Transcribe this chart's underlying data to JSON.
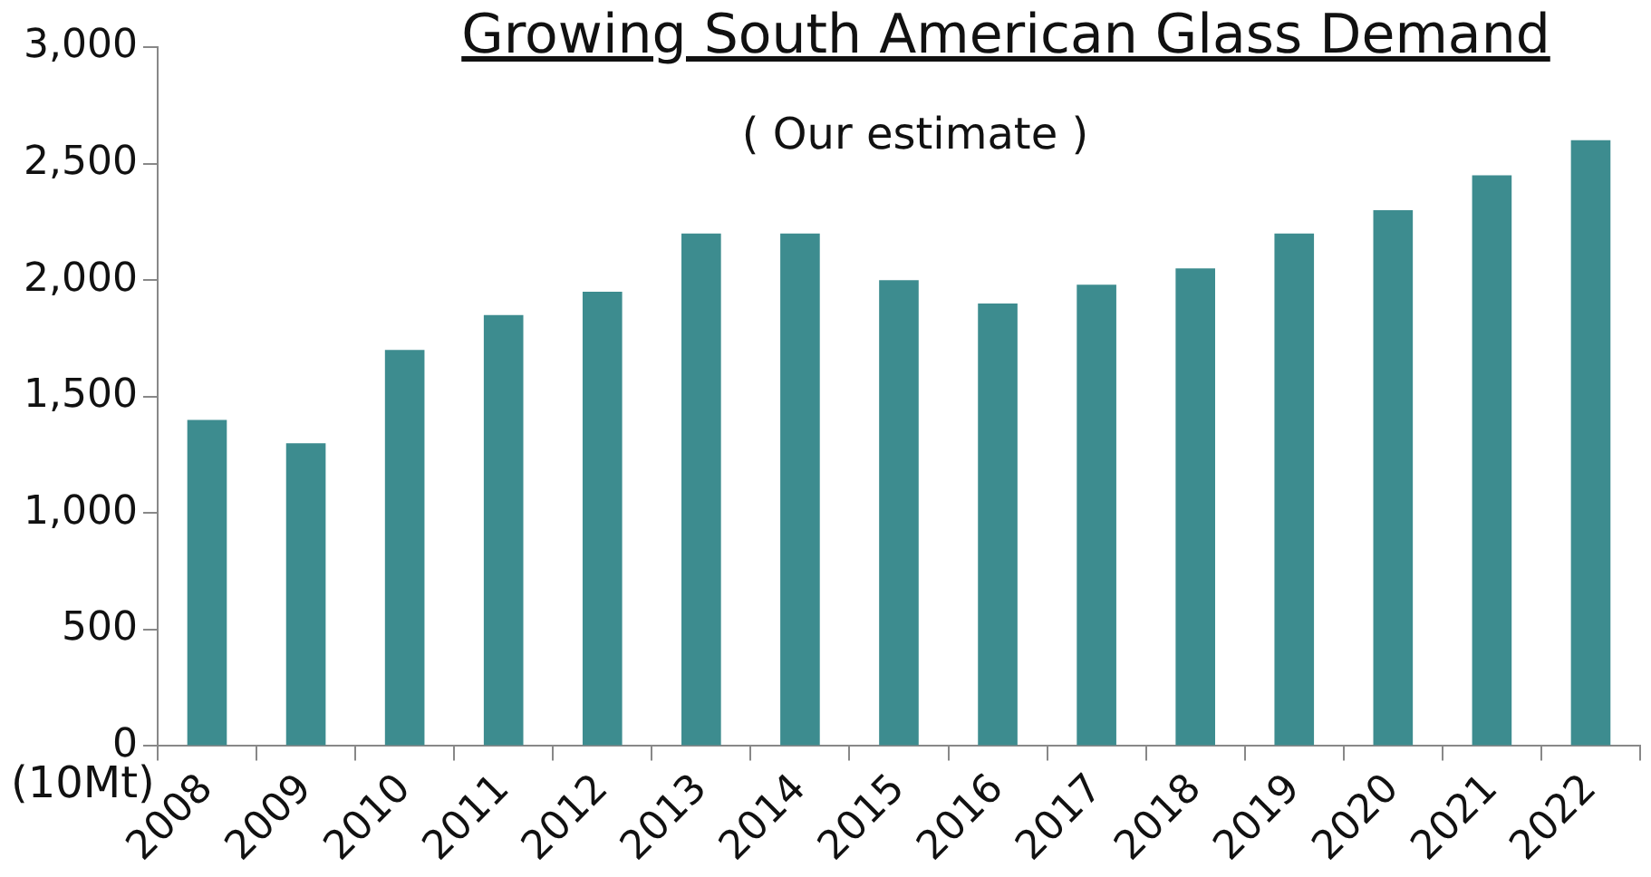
{
  "chart_data": {
    "type": "bar",
    "title": "Growing South American Glass Demand",
    "subtitle": "( Our estimate )",
    "ylabel": "(10Mt)",
    "categories": [
      "2008",
      "2009",
      "2010",
      "2011",
      "2012",
      "2013",
      "2014",
      "2015",
      "2016",
      "2017",
      "2018",
      "2019",
      "2020",
      "2021",
      "2022"
    ],
    "values": [
      1400,
      1300,
      1700,
      1850,
      1950,
      2200,
      2200,
      2000,
      1900,
      1980,
      2050,
      2200,
      2300,
      2450,
      2600
    ],
    "color": "#3d8c8f",
    "ylim": [
      0,
      3000
    ],
    "yticks": [
      {
        "value": 0,
        "label": "0"
      },
      {
        "value": 500,
        "label": "500"
      },
      {
        "value": 1000,
        "label": "1,000"
      },
      {
        "value": 1500,
        "label": "1,500"
      },
      {
        "value": 2000,
        "label": "2,000"
      },
      {
        "value": 2500,
        "label": "2,500"
      },
      {
        "value": 3000,
        "label": "3,000"
      }
    ],
    "grid": false,
    "legend": false
  }
}
